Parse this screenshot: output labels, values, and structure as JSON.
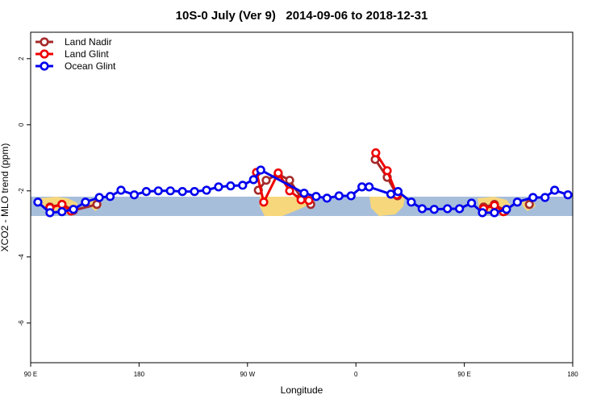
{
  "chart_data": {
    "type": "line",
    "title": "10S-0 July (Ver 9)   2014-09-06 to 2018-12-31",
    "xlabel": "Longitude",
    "ylabel": "XCO2 - MLO trend (ppm)",
    "xlim": [
      90,
      540
    ],
    "ylim": [
      -7.2,
      2.8
    ],
    "xticks": [
      {
        "value": 90,
        "label": "90 E"
      },
      180,
      {
        "value": 270,
        "label": "90 W"
      },
      {
        "value": 360,
        "label": "0"
      },
      {
        "value": 450,
        "label": "90 E"
      },
      {
        "value": 540,
        "label": "180"
      }
    ],
    "yticks": [
      2,
      0,
      -2,
      -4,
      -6
    ],
    "legend": "top-left",
    "series": [
      {
        "name": "Land Nadir",
        "color": "#a52a2a",
        "x": [
          106,
          116,
          125.5,
          145,
          null,
          279,
          285.5,
          295.5,
          305,
          314.5,
          322.5,
          null,
          376,
          386,
          394.5,
          null,
          466,
          475,
          484,
          null,
          504
        ],
        "values": [
          -2.49,
          -2.41,
          -2.59,
          -2.41,
          null,
          -1.98,
          -1.68,
          -1.49,
          -1.68,
          -2.2,
          -2.41,
          null,
          -1.05,
          -1.59,
          -2.15,
          null,
          -2.49,
          -2.41,
          -2.61,
          null,
          -2.41
        ]
      },
      {
        "name": "Land Glint",
        "color": "#ee0000",
        "x": [
          106,
          116,
          123.5,
          null,
          277.5,
          283.5,
          295.5,
          305,
          314.5,
          321,
          null,
          376.5,
          386,
          394,
          null,
          466,
          475,
          482.5
        ],
        "values": [
          -2.51,
          -2.41,
          -2.61,
          null,
          -1.44,
          -2.34,
          -1.46,
          -2.0,
          -2.27,
          -2.29,
          null,
          -0.85,
          -1.39,
          -2.12,
          null,
          -2.54,
          -2.44,
          -2.63
        ]
      },
      {
        "name": "Ocean Glint",
        "color": "#0000ee",
        "x": [
          96,
          106,
          116,
          125.5,
          135.5,
          147,
          156,
          165,
          176,
          186,
          196,
          206,
          216,
          226,
          236,
          246,
          256,
          266,
          275,
          281,
          317,
          327,
          336,
          346,
          356,
          365,
          371,
          389,
          395,
          406,
          415,
          425,
          436,
          446,
          456,
          465,
          475,
          485,
          494,
          507,
          517,
          525,
          536
        ],
        "values": [
          -2.34,
          -2.66,
          -2.63,
          -2.56,
          -2.34,
          -2.2,
          -2.17,
          -1.98,
          -2.12,
          -2.02,
          -2.0,
          -2.0,
          -2.02,
          -2.02,
          -1.98,
          -1.88,
          -1.85,
          -1.83,
          -1.66,
          -1.37,
          -2.07,
          -2.17,
          -2.22,
          -2.15,
          -2.15,
          -1.88,
          -1.88,
          -2.1,
          -2.02,
          -2.34,
          -2.54,
          -2.56,
          -2.54,
          -2.54,
          -2.37,
          -2.66,
          -2.66,
          -2.56,
          -2.34,
          -2.2,
          -2.2,
          -1.98,
          -2.12
        ]
      }
    ]
  }
}
